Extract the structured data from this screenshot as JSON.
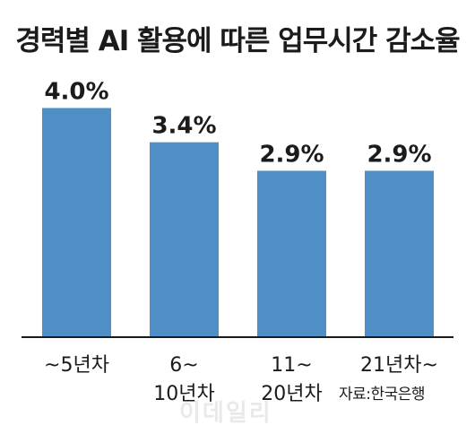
{
  "title": "경력별 AI 활용에 따른 업무시간 감소율",
  "source": "자료:한국은행",
  "watermark": "이데일리",
  "colors": {
    "bar": "#4f8fc6",
    "axis": "#1a1a1a",
    "text": "#1b1b1b"
  },
  "chart_data": {
    "type": "bar",
    "title": "경력별 AI 활용에 따른 업무시간 감소율",
    "categories": [
      "~5년차",
      "6~10년차",
      "11~20년차",
      "21년차~"
    ],
    "category_lines": [
      [
        "~5년차"
      ],
      [
        "6~",
        "10년차"
      ],
      [
        "11~",
        "20년차"
      ],
      [
        "21년차~"
      ]
    ],
    "values": [
      4.0,
      3.4,
      2.9,
      2.9
    ],
    "data_labels": [
      "4.0%",
      "3.4%",
      "2.9%",
      "2.9%"
    ],
    "unit": "%",
    "ylim": [
      0,
      4.4
    ],
    "grid": false,
    "legend": "none"
  }
}
